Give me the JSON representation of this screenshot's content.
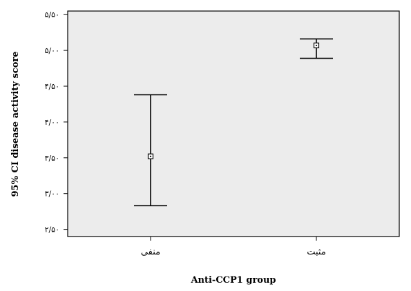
{
  "chart_data": {
    "type": "errorbar",
    "xlabel": "Anti-CCP1 group",
    "ylabel": "95% CI disease activity score",
    "categories": [
      "منفی",
      "مثبت"
    ],
    "mean": [
      3.52,
      5.07
    ],
    "ci_low": [
      2.83,
      4.89
    ],
    "ci_high": [
      4.38,
      5.16
    ],
    "ylim": [
      2.4,
      5.55
    ],
    "yticks": [
      2.5,
      3.0,
      3.5,
      4.0,
      4.5,
      5.0,
      5.5
    ],
    "ytick_labels": [
      "۲/۵۰",
      "۳/۰۰",
      "۳/۵۰",
      "۴/۰۰",
      "۴/۵۰",
      "۵/۰۰",
      "۵/۵۰"
    ],
    "grid": false,
    "plot_background": "#ececec",
    "marker": "square-with-dot"
  }
}
